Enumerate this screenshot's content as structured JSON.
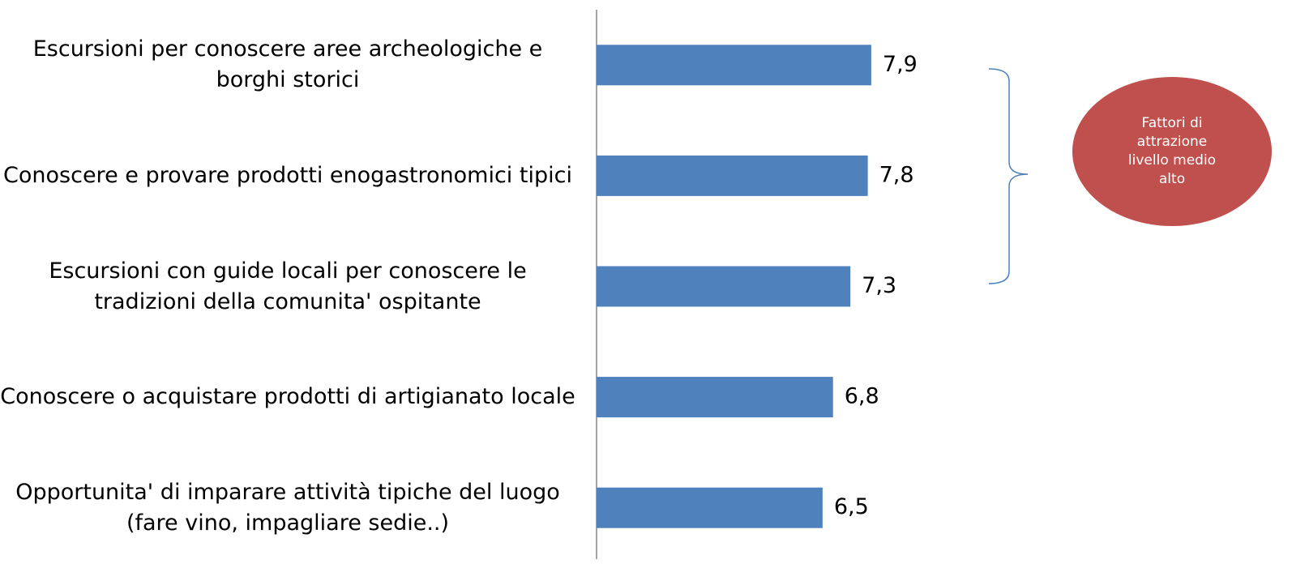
{
  "chart_data": {
    "type": "bar",
    "orientation": "horizontal",
    "categories": [
      "Escursioni per conoscere aree archeologiche e borghi storici",
      "Conoscere e provare prodotti enogastronomici tipici",
      "Escursioni con guide locali per conoscere le tradizioni della comunita' ospitante",
      "Conoscere o acquistare prodotti di artigianato locale",
      "Opportunita' di imparare attività tipiche del luogo (fare vino, impagliare sedie..)"
    ],
    "values": [
      7.9,
      7.8,
      7.3,
      6.8,
      6.5
    ],
    "value_labels": [
      "7,9",
      "7,8",
      "7,3",
      "6,8",
      "6,5"
    ],
    "color": "#4f81bd",
    "xlim": [
      0,
      20
    ],
    "annotation": "Fattori di attrazione livello medio alto",
    "annotation_color": "#c0504d"
  }
}
